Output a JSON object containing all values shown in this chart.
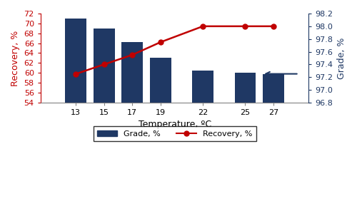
{
  "temperatures": [
    13,
    15,
    17,
    19,
    22,
    25,
    27
  ],
  "recovery": [
    71.0,
    69.0,
    66.2,
    63.0,
    60.5,
    60.0,
    59.8
  ],
  "grade": [
    97.25,
    97.4,
    97.55,
    97.75,
    98.0,
    98.0,
    98.0
  ],
  "bar_color": "#1F3864",
  "line_color": "#C00000",
  "left_ylabel": "Recovery, %",
  "right_ylabel": "Grade, %",
  "xlabel": "Temperature, ºC",
  "left_ylim": [
    54,
    72
  ],
  "right_ylim": [
    96.8,
    98.2
  ],
  "left_yticks": [
    54,
    56,
    58,
    60,
    62,
    64,
    66,
    68,
    70,
    72
  ],
  "right_yticks": [
    96.8,
    97.0,
    97.2,
    97.4,
    97.6,
    97.8,
    98.0,
    98.2
  ],
  "legend_bar_label": "Grade, %",
  "legend_line_label": "Recovery, %",
  "bar_width": 1.5,
  "xlim": [
    10.5,
    29.5
  ]
}
